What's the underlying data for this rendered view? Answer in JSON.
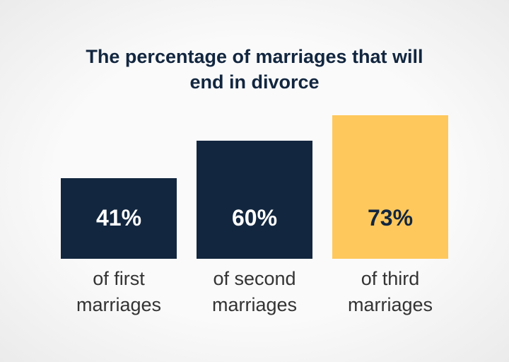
{
  "chart_data": {
    "type": "bar",
    "title": "The percentage of marriages that will end in divorce",
    "categories": [
      "of first marriages",
      "of second marriages",
      "of third marriages"
    ],
    "values": [
      41,
      60,
      73
    ],
    "value_labels": [
      "41%",
      "60%",
      "73%"
    ],
    "colors": [
      "#12263f",
      "#12263f",
      "#fec85c"
    ],
    "value_label_colors": [
      "#ffffff",
      "#ffffff",
      "#12263f"
    ]
  }
}
